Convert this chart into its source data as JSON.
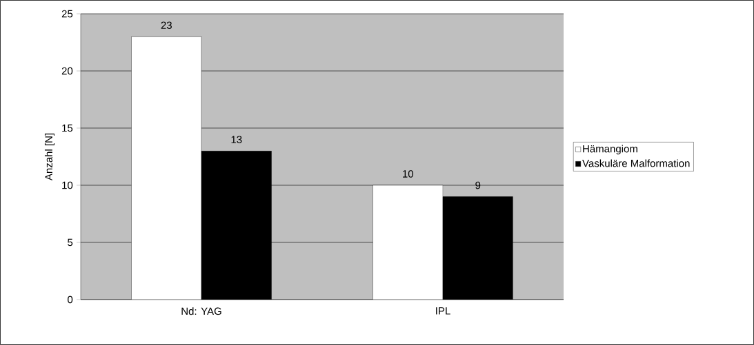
{
  "chart_data": {
    "type": "bar",
    "ylabel": "Anzahl [N]",
    "categories": [
      "Nd: YAG",
      "IPL"
    ],
    "series": [
      {
        "name": "Hämangiom",
        "color": "#ffffff",
        "values": [
          23,
          10
        ]
      },
      {
        "name": "Vaskuläre Malformation",
        "color": "#000000",
        "values": [
          13,
          9
        ]
      }
    ],
    "ylim": [
      0,
      25
    ],
    "yticks": [
      0,
      5,
      10,
      15,
      20,
      25
    ],
    "grid": "y",
    "legend": "right",
    "data_labels": true
  }
}
